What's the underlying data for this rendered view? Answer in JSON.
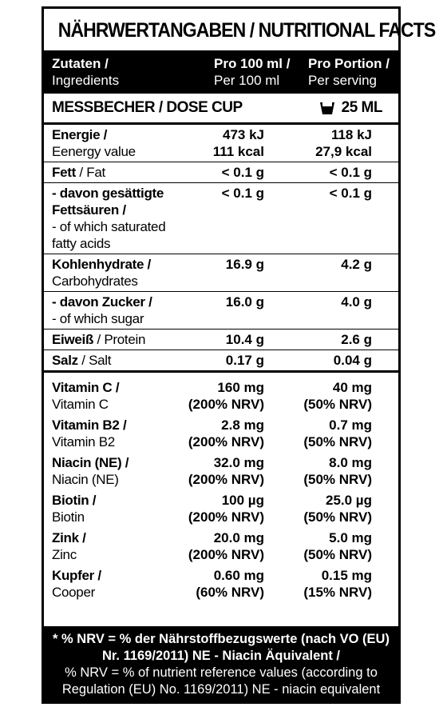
{
  "title": "NÄHRWERTANGABEN / NUTRITIONAL FACTS",
  "header": {
    "ingredients": [
      "Zutaten /",
      "Ingredients"
    ],
    "per100": [
      "Pro 100 ml /",
      "Per 100 ml"
    ],
    "serving": [
      "Pro Portion /",
      "Per serving"
    ]
  },
  "dose": {
    "label": "MESSBECHER / DOSE CUP",
    "amount": "25 ML"
  },
  "nutrients": [
    {
      "de": [
        "Energie /"
      ],
      "en": [
        "Eenergy value"
      ],
      "per100": [
        "473 kJ",
        "111 kcal"
      ],
      "serving": [
        "118 kJ",
        "27,9 kcal"
      ]
    },
    {
      "de": [
        "Fett"
      ],
      "en": [
        "/ Fat"
      ],
      "inline": true,
      "per100": [
        "< 0.1 g"
      ],
      "serving": [
        "< 0.1 g"
      ]
    },
    {
      "de": [
        "- davon gesättigte",
        "Fettsäuren /"
      ],
      "en": [
        "- of which saturated",
        "fatty acids"
      ],
      "per100": [
        "< 0.1 g"
      ],
      "serving": [
        "< 0.1 g"
      ]
    },
    {
      "de": [
        "Kohlenhydrate /"
      ],
      "en": [
        "Carbohydrates"
      ],
      "per100": [
        "16.9 g"
      ],
      "serving": [
        "4.2 g"
      ]
    },
    {
      "de": [
        "- davon Zucker /"
      ],
      "en": [
        "- of which sugar"
      ],
      "per100": [
        "16.0 g"
      ],
      "serving": [
        "4.0 g"
      ]
    },
    {
      "de": [
        "Eiweiß"
      ],
      "en": [
        "/ Protein"
      ],
      "inline": true,
      "per100": [
        "10.4 g"
      ],
      "serving": [
        "2.6 g"
      ]
    },
    {
      "de": [
        "Salz"
      ],
      "en": [
        "/ Salt"
      ],
      "inline": true,
      "per100": [
        "0.17 g"
      ],
      "serving": [
        "0.04 g"
      ]
    }
  ],
  "vitamins": [
    {
      "de": [
        "Vitamin C /"
      ],
      "en": [
        "Vitamin C"
      ],
      "per100": [
        "160 mg",
        "(200% NRV)"
      ],
      "serving": [
        "40 mg",
        "(50% NRV)"
      ]
    },
    {
      "de": [
        "Vitamin B2 /"
      ],
      "en": [
        "Vitamin B2"
      ],
      "per100": [
        "2.8 mg",
        "(200% NRV)"
      ],
      "serving": [
        "0.7 mg",
        "(50% NRV)"
      ]
    },
    {
      "de": [
        "Niacin (NE) /"
      ],
      "en": [
        "Niacin (NE)"
      ],
      "per100": [
        "32.0 mg",
        "(200% NRV)"
      ],
      "serving": [
        "8.0 mg",
        "(50% NRV)"
      ]
    },
    {
      "de": [
        "Biotin /"
      ],
      "en": [
        "Biotin"
      ],
      "per100": [
        "100 µg",
        "(200% NRV)"
      ],
      "serving": [
        "25.0 µg",
        "(50% NRV)"
      ]
    },
    {
      "de": [
        "Zink /"
      ],
      "en": [
        "Zinc"
      ],
      "per100": [
        "20.0 mg",
        "(200% NRV)"
      ],
      "serving": [
        "5.0 mg",
        "(50% NRV)"
      ]
    },
    {
      "de": [
        "Kupfer /"
      ],
      "en": [
        "Cooper"
      ],
      "per100": [
        "0.60 mg",
        "(60% NRV)"
      ],
      "serving": [
        "0.15 mg",
        "(15% NRV)"
      ]
    }
  ],
  "footer": {
    "de": [
      "* % NRV = % der Nährstoffbezugswerte (nach VO (EU)",
      "Nr. 1169/2011) NE - Niacin Äquivalent /"
    ],
    "en": [
      "% NRV = % of nutrient reference values (according to",
      "Regulation (EU) No. 1169/2011)  NE - niacin equivalent"
    ]
  }
}
